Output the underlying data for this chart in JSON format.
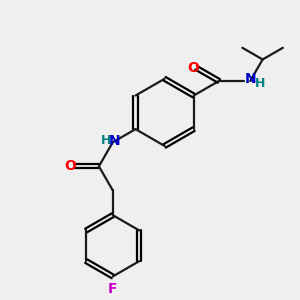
{
  "bg_color": "#efefef",
  "bond_color": "#1a1a1a",
  "O_color": "#ff0000",
  "N_color": "#0000cc",
  "F_color": "#cc00cc",
  "H_color": "#008080",
  "lw": 1.6,
  "dbo": 0.07,
  "xlim": [
    0,
    10
  ],
  "ylim": [
    0,
    10
  ]
}
